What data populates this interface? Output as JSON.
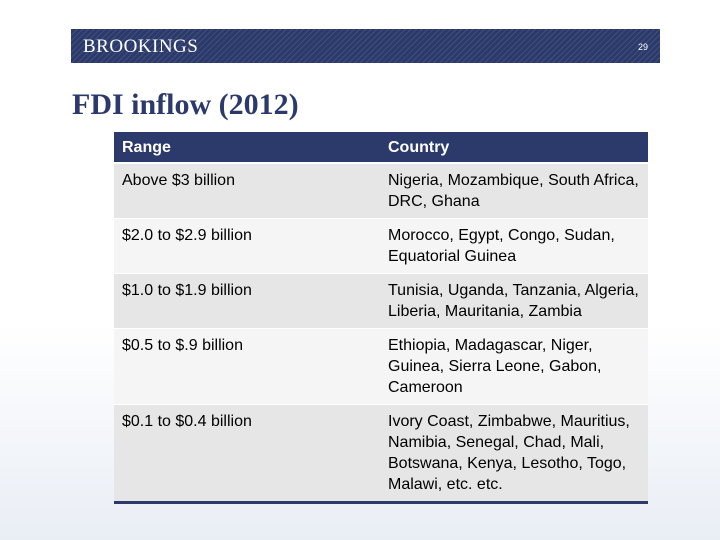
{
  "header": {
    "brand": "BROOKINGS",
    "page_number": "29"
  },
  "title": "FDI inflow (2012)",
  "table": {
    "headers": [
      "Range",
      "Country"
    ],
    "rows": [
      {
        "range": "Above $3 billion",
        "countries": "Nigeria, Mozambique, South Africa, DRC, Ghana"
      },
      {
        "range": "$2.0 to $2.9 billion",
        "countries": "Morocco, Egypt, Congo, Sudan, Equatorial Guinea"
      },
      {
        "range": "$1.0 to $1.9 billion",
        "countries": "Tunisia, Uganda, Tanzania, Algeria, Liberia, Mauritania, Zambia"
      },
      {
        "range": "$0.5 to $.9 billion",
        "countries": "Ethiopia, Madagascar, Niger, Guinea, Sierra Leone, Gabon, Cameroon"
      },
      {
        "range": "$0.1 to $0.4 billion",
        "countries": "Ivory Coast, Zimbabwe, Mauritius, Namibia, Senegal, Chad, Mali, Botswana, Kenya, Lesotho, Togo, Malawi, etc. etc."
      }
    ]
  },
  "colors": {
    "brand_navy": "#2b3a6b",
    "row_shade": "#e6e6e6",
    "row_light": "#f5f5f5"
  }
}
